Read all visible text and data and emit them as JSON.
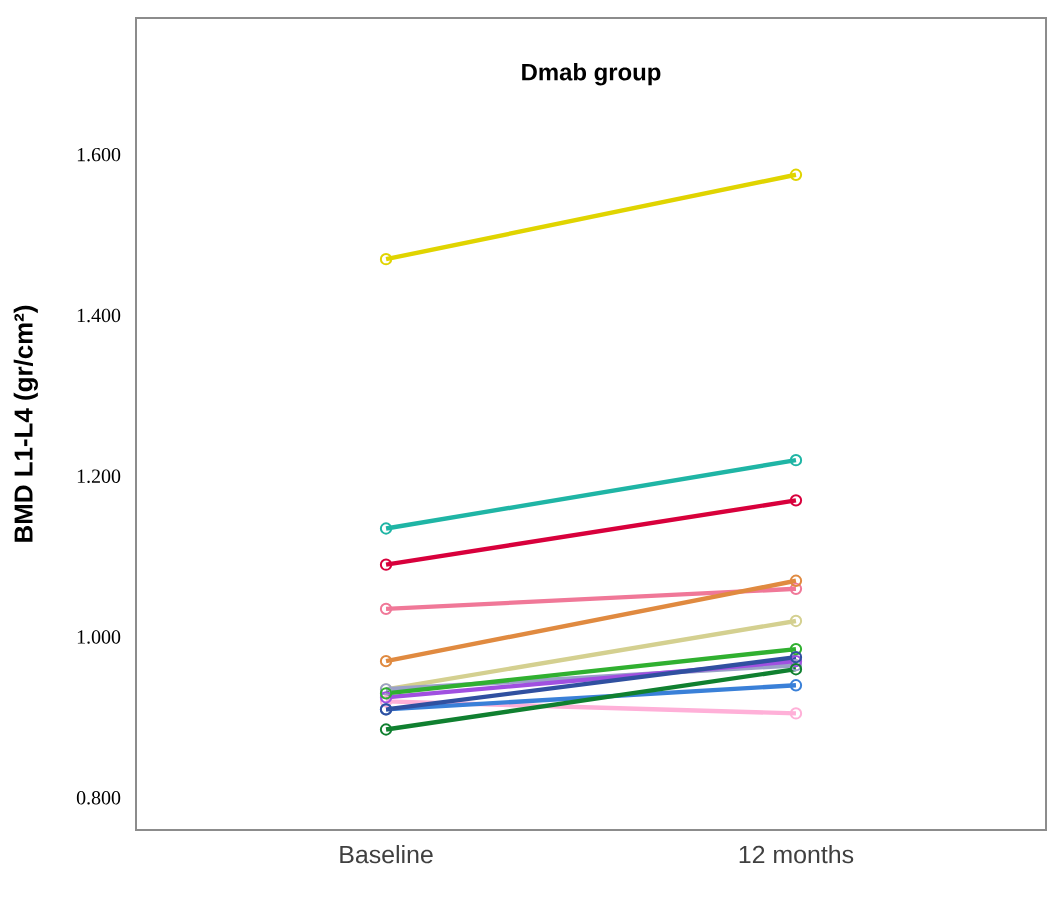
{
  "chart_data": {
    "type": "line",
    "title": "Dmab group",
    "ylabel": "BMD L1-L4 (gr/cm²)",
    "categories": [
      "Baseline",
      "12 months"
    ],
    "ylim": [
      0.76,
      1.77
    ],
    "yticks": [
      {
        "value": 0.8,
        "label": "0.800"
      },
      {
        "value": 1.0,
        "label": "1.000"
      },
      {
        "value": 1.2,
        "label": "1.200"
      },
      {
        "value": 1.4,
        "label": "1.400"
      },
      {
        "value": 1.6,
        "label": "1.600"
      }
    ],
    "grid": false,
    "marker": "circle",
    "line_style": "solid",
    "series": [
      {
        "color": "#e0d400",
        "values": [
          1.47,
          1.575
        ]
      },
      {
        "color": "#1fb5a5",
        "values": [
          1.135,
          1.22
        ]
      },
      {
        "color": "#d8003c",
        "values": [
          1.09,
          1.17
        ]
      },
      {
        "color": "#f07898",
        "values": [
          1.035,
          1.06
        ]
      },
      {
        "color": "#e08a40",
        "values": [
          0.97,
          1.07
        ]
      },
      {
        "color": "#d4d090",
        "values": [
          0.935,
          1.02
        ]
      },
      {
        "color": "#9aa0c8",
        "values": [
          0.935,
          0.965
        ]
      },
      {
        "color": "#ffb0d8",
        "values": [
          0.92,
          0.905
        ]
      },
      {
        "color": "#a050e0",
        "values": [
          0.925,
          0.97
        ]
      },
      {
        "color": "#30b030",
        "values": [
          0.93,
          0.985
        ]
      },
      {
        "color": "#3a80d8",
        "values": [
          0.91,
          0.94
        ]
      },
      {
        "color": "#3050a0",
        "values": [
          0.91,
          0.975
        ]
      },
      {
        "color": "#108030",
        "values": [
          0.885,
          0.96
        ]
      }
    ]
  }
}
